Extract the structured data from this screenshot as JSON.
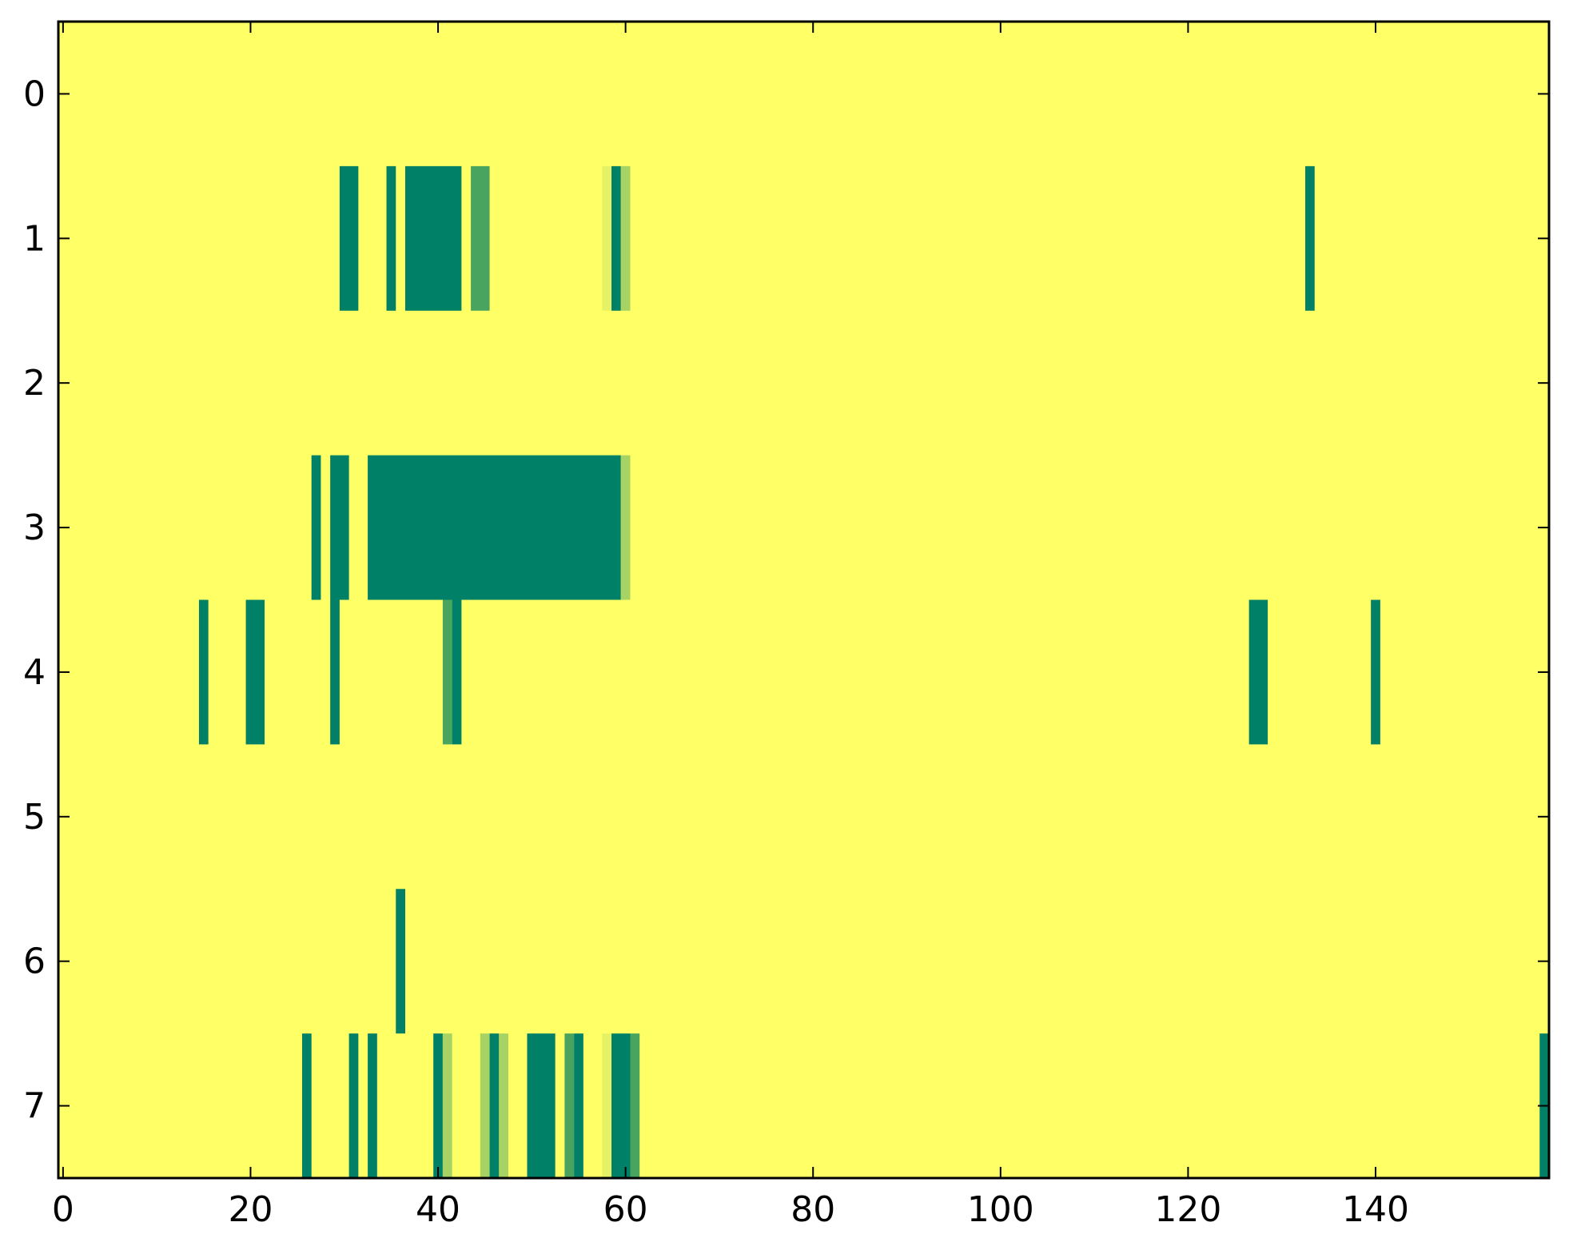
{
  "chart_data": {
    "type": "heatmap",
    "title": "",
    "xlabel": "",
    "ylabel": "",
    "xlim": [
      -0.5,
      158.5
    ],
    "ylim": [
      7.5,
      -0.5
    ],
    "xticks": [
      0,
      20,
      40,
      60,
      80,
      100,
      120,
      140
    ],
    "yticks": [
      0,
      1,
      2,
      3,
      4,
      5,
      6,
      7
    ],
    "grid": false,
    "background_value_color": "#ffff66",
    "colors": {
      "dark": "#008066",
      "mid": "#48a45f",
      "light": "#a7d264",
      "pale": "#e6f266"
    },
    "cells": [
      {
        "row": 1,
        "x_start": 30,
        "x_end": 31,
        "shade": "dark"
      },
      {
        "row": 1,
        "x_start": 35,
        "x_end": 35,
        "shade": "dark"
      },
      {
        "row": 1,
        "x_start": 37,
        "x_end": 42,
        "shade": "dark"
      },
      {
        "row": 1,
        "x_start": 44,
        "x_end": 45,
        "shade": "mid"
      },
      {
        "row": 1,
        "x_start": 58,
        "x_end": 58,
        "shade": "pale"
      },
      {
        "row": 1,
        "x_start": 59,
        "x_end": 59,
        "shade": "dark"
      },
      {
        "row": 1,
        "x_start": 60,
        "x_end": 60,
        "shade": "light"
      },
      {
        "row": 1,
        "x_start": 133,
        "x_end": 133,
        "shade": "dark"
      },
      {
        "row": 3,
        "x_start": 27,
        "x_end": 27,
        "shade": "dark"
      },
      {
        "row": 3,
        "x_start": 29,
        "x_end": 30,
        "shade": "dark"
      },
      {
        "row": 3,
        "x_start": 33,
        "x_end": 59,
        "shade": "dark"
      },
      {
        "row": 3,
        "x_start": 60,
        "x_end": 60,
        "shade": "light"
      },
      {
        "row": 4,
        "x_start": 15,
        "x_end": 15,
        "shade": "dark"
      },
      {
        "row": 4,
        "x_start": 20,
        "x_end": 21,
        "shade": "dark"
      },
      {
        "row": 4,
        "x_start": 29,
        "x_end": 29,
        "shade": "dark"
      },
      {
        "row": 4,
        "x_start": 41,
        "x_end": 41,
        "shade": "mid"
      },
      {
        "row": 4,
        "x_start": 42,
        "x_end": 42,
        "shade": "dark"
      },
      {
        "row": 4,
        "x_start": 127,
        "x_end": 128,
        "shade": "dark"
      },
      {
        "row": 4,
        "x_start": 140,
        "x_end": 140,
        "shade": "dark"
      },
      {
        "row": 6,
        "x_start": 36,
        "x_end": 36,
        "shade": "dark"
      },
      {
        "row": 7,
        "x_start": 26,
        "x_end": 26,
        "shade": "dark"
      },
      {
        "row": 7,
        "x_start": 31,
        "x_end": 31,
        "shade": "dark"
      },
      {
        "row": 7,
        "x_start": 33,
        "x_end": 33,
        "shade": "dark"
      },
      {
        "row": 7,
        "x_start": 40,
        "x_end": 40,
        "shade": "dark"
      },
      {
        "row": 7,
        "x_start": 41,
        "x_end": 41,
        "shade": "light"
      },
      {
        "row": 7,
        "x_start": 45,
        "x_end": 45,
        "shade": "light"
      },
      {
        "row": 7,
        "x_start": 46,
        "x_end": 46,
        "shade": "dark"
      },
      {
        "row": 7,
        "x_start": 47,
        "x_end": 47,
        "shade": "light"
      },
      {
        "row": 7,
        "x_start": 50,
        "x_end": 52,
        "shade": "dark"
      },
      {
        "row": 7,
        "x_start": 54,
        "x_end": 54,
        "shade": "mid"
      },
      {
        "row": 7,
        "x_start": 55,
        "x_end": 55,
        "shade": "dark"
      },
      {
        "row": 7,
        "x_start": 58,
        "x_end": 58,
        "shade": "pale"
      },
      {
        "row": 7,
        "x_start": 59,
        "x_end": 60,
        "shade": "dark"
      },
      {
        "row": 7,
        "x_start": 61,
        "x_end": 61,
        "shade": "mid"
      },
      {
        "row": 7,
        "x_start": 158,
        "x_end": 158,
        "shade": "dark"
      }
    ]
  }
}
